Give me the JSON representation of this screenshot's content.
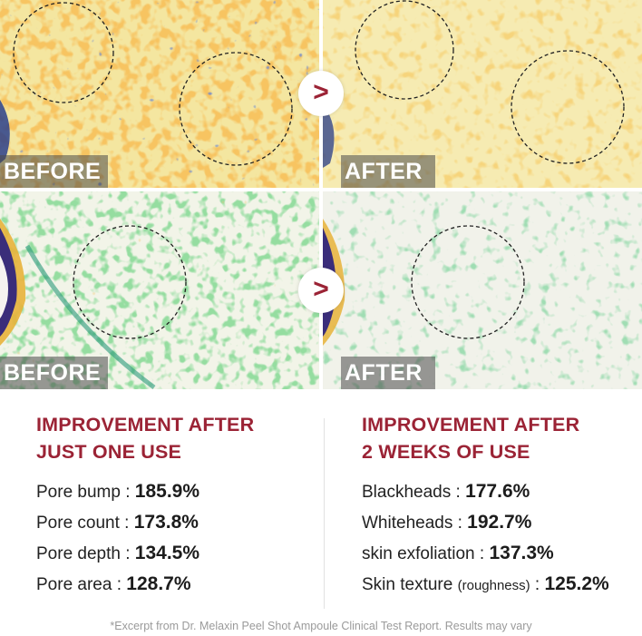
{
  "comparison": {
    "before_label": "BEFORE",
    "after_label": "AFTER",
    "arrow_glyph": ">"
  },
  "results": {
    "left": {
      "heading_line1": "IMPROVEMENT AFTER",
      "heading_line2": "JUST ONE USE",
      "metrics": [
        {
          "label": "Pore bump : ",
          "value": "185.9%"
        },
        {
          "label": "Pore count : ",
          "value": "173.8%"
        },
        {
          "label": "Pore depth : ",
          "value": "134.5%"
        },
        {
          "label": "Pore area : ",
          "value": "128.7%"
        }
      ]
    },
    "right": {
      "heading_line1": "IMPROVEMENT AFTER",
      "heading_line2": "2 WEEKS OF USE",
      "metrics": [
        {
          "label": "Blackheads : ",
          "value": "177.6%"
        },
        {
          "label": "Whiteheads : ",
          "value": "192.7%"
        },
        {
          "label": "skin exfoliation : ",
          "value": "137.3%"
        },
        {
          "label": "Skin texture ",
          "note": "(roughness)",
          "label_end": " : ",
          "value": "125.2%"
        }
      ]
    },
    "footnote": "*Excerpt from Dr. Melaxin Peel Shot Ampoule Clinical Test Report. Results may vary"
  },
  "colors": {
    "accent": "#9b2335",
    "top_skin": "#f2df8a",
    "bottom_skin": "#f1f3e6"
  }
}
